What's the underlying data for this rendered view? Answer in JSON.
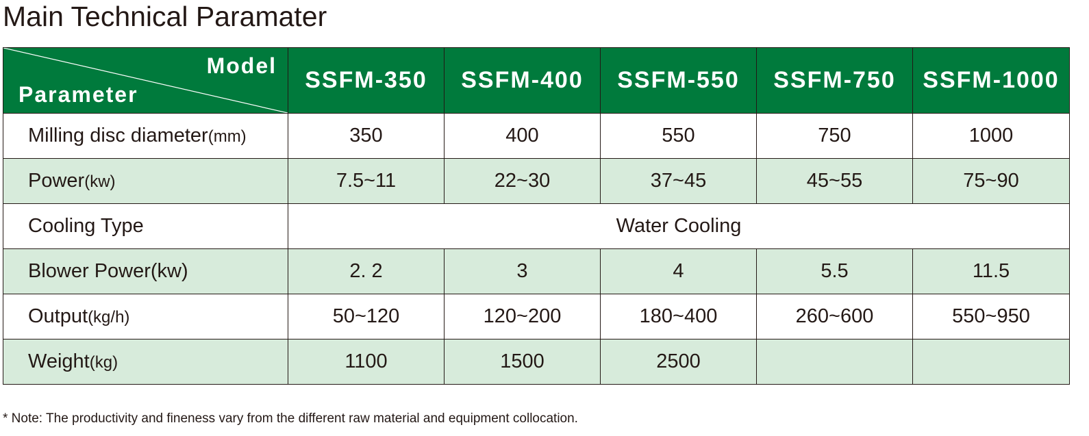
{
  "title": "Main Technical Paramater",
  "table": {
    "corner_top": "Model",
    "corner_bottom": "Parameter",
    "models": [
      "SSFM-350",
      "SSFM-400",
      "SSFM-550",
      "SSFM-750",
      "SSFM-1000"
    ],
    "rows": [
      {
        "label": "Milling disc diameter",
        "unit": "(mm)",
        "values": [
          "350",
          "400",
          "550",
          "750",
          "1000"
        ]
      },
      {
        "label": "Power",
        "unit": "(kw)",
        "values": [
          "7.5~11",
          "22~30",
          "37~45",
          "45~55",
          "75~90"
        ]
      },
      {
        "label": "Cooling Type",
        "unit": "",
        "merged_value": "Water Cooling"
      },
      {
        "label": "Blower Power(kw)",
        "unit": "",
        "values": [
          "2. 2",
          "3",
          "4",
          "5.5",
          "11.5"
        ]
      },
      {
        "label": "Output",
        "unit": "(kg/h)",
        "values": [
          "50~120",
          "120~200",
          "180~400",
          "260~600",
          "550~950"
        ]
      },
      {
        "label": "Weight",
        "unit": "(kg)",
        "values": [
          "1100",
          "1500",
          "2500",
          "",
          ""
        ]
      }
    ]
  },
  "note": "* Note: The productivity and fineness vary from the different raw material and equipment collocation.",
  "colors": {
    "header_green": "#007a3c",
    "alt_row": "#d7ebdb",
    "text": "#231815"
  }
}
